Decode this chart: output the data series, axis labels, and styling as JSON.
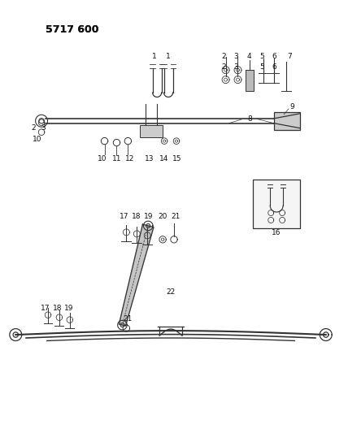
{
  "title": "5717 600",
  "bg_color": "#ffffff",
  "line_color": "#333333",
  "text_color": "#111111",
  "title_fontsize": 9,
  "label_fontsize": 6.5,
  "figsize": [
    4.28,
    5.33
  ],
  "dpi": 100
}
